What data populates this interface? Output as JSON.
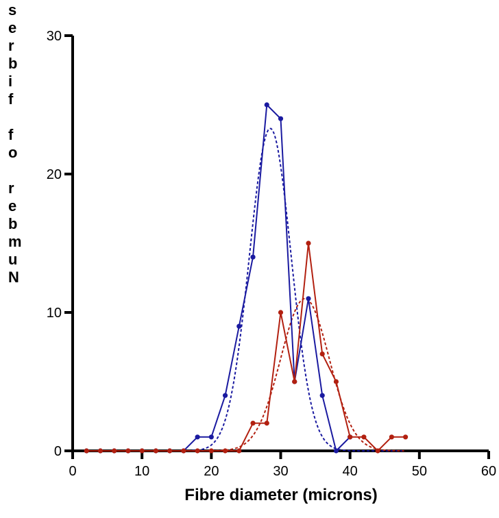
{
  "chart_data": {
    "type": "line",
    "title": "",
    "xlabel": "Fibre diameter (microns)",
    "ylabel": "Number of fibres",
    "xlim": [
      0,
      60
    ],
    "ylim": [
      0,
      30
    ],
    "x_ticks": [
      0,
      10,
      20,
      30,
      40,
      50,
      60
    ],
    "y_ticks": [
      0,
      10,
      20,
      30
    ],
    "grid": false,
    "legend": "none",
    "series": [
      {
        "color": "#1a1aa0",
        "x": [
          2,
          4,
          6,
          8,
          10,
          12,
          14,
          16,
          18,
          20,
          22,
          24,
          26,
          28,
          30,
          32,
          34,
          36,
          38,
          40
        ],
        "y": [
          0,
          0,
          0,
          0,
          0,
          0,
          0,
          0,
          1,
          1,
          4,
          9,
          14,
          25,
          24,
          5,
          11,
          4,
          0,
          1
        ]
      },
      {
        "color": "#b22010",
        "x": [
          2,
          4,
          6,
          8,
          10,
          12,
          14,
          16,
          18,
          20,
          22,
          24,
          26,
          28,
          30,
          32,
          34,
          36,
          38,
          40,
          42,
          44,
          46,
          48
        ],
        "y": [
          0,
          0,
          0,
          0,
          0,
          0,
          0,
          0,
          0,
          0,
          0,
          0,
          2,
          2,
          10,
          5,
          15,
          7,
          5,
          1,
          1,
          0,
          1,
          1
        ]
      }
    ],
    "fits": [
      {
        "color": "#1a1aa0",
        "style": "dashed",
        "amplitude": 23.3,
        "mean": 28.5,
        "sd": 3.0
      },
      {
        "color": "#b22010",
        "style": "dashed",
        "amplitude": 11.0,
        "mean": 33.5,
        "sd": 3.5
      }
    ]
  }
}
